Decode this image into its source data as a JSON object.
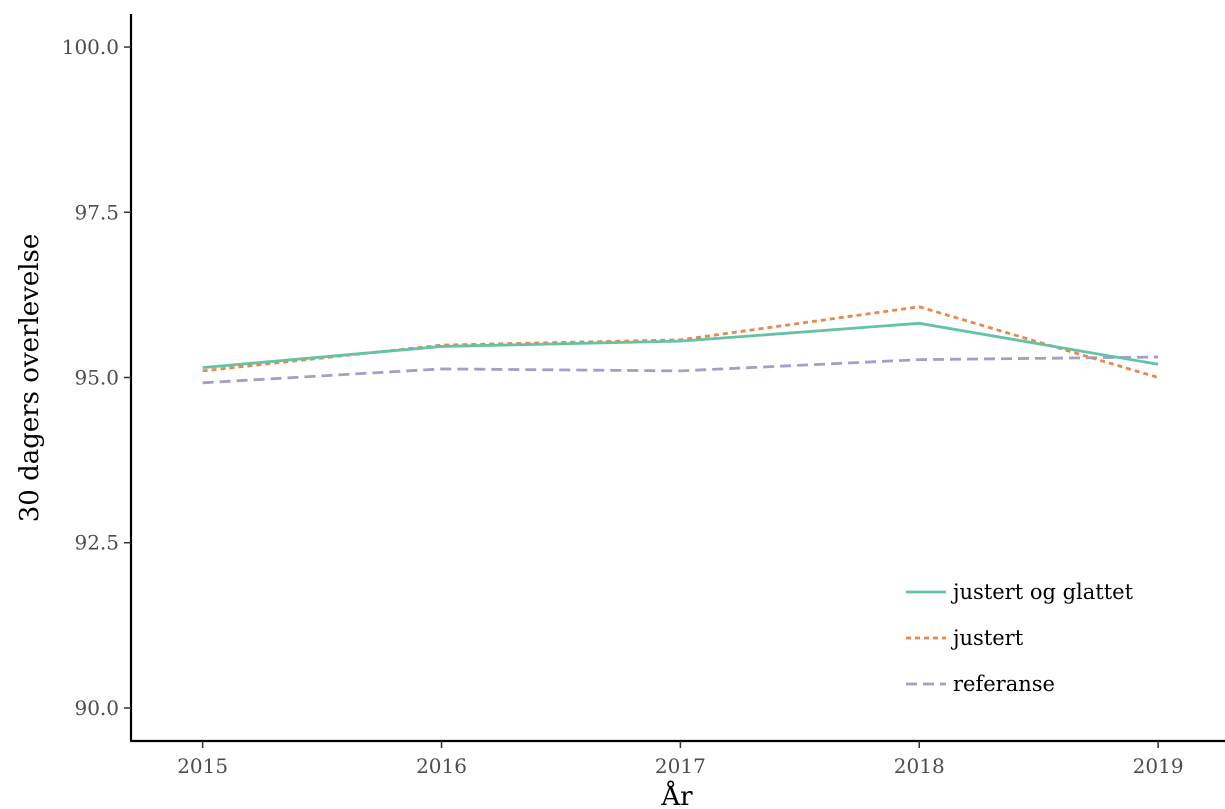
{
  "chart_data": {
    "type": "line",
    "xlabel": "År",
    "ylabel": "30 dagers overlevelse",
    "x": [
      2015,
      2016,
      2017,
      2018,
      2019
    ],
    "xlim": [
      2014.7,
      2019.28
    ],
    "ylim": [
      89.5,
      100.5
    ],
    "xticks": [
      "2015",
      "2016",
      "2017",
      "2018",
      "2019"
    ],
    "yticks": [
      "90.0",
      "92.5",
      "95.0",
      "97.5",
      "100.0"
    ],
    "grid": false,
    "legend_position": "bottom-right",
    "series": [
      {
        "name": "justert og glattet",
        "values": [
          95.15,
          95.47,
          95.55,
          95.82,
          95.2
        ],
        "color": "#66c2a5",
        "dash": "solid"
      },
      {
        "name": "justert",
        "values": [
          95.1,
          95.49,
          95.57,
          96.07,
          95.0
        ],
        "color": "#e6894e",
        "dash": "dotted"
      },
      {
        "name": "referanse",
        "values": [
          94.92,
          95.13,
          95.1,
          95.27,
          95.31
        ],
        "color": "#a49ec9",
        "dash": "dashed"
      }
    ]
  }
}
